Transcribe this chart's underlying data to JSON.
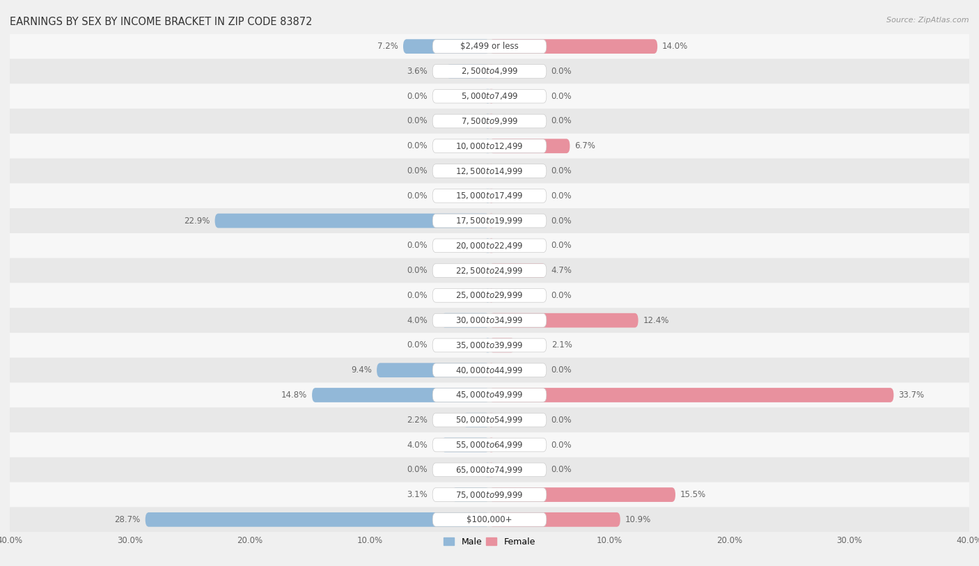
{
  "title": "EARNINGS BY SEX BY INCOME BRACKET IN ZIP CODE 83872",
  "source": "Source: ZipAtlas.com",
  "categories": [
    "$2,499 or less",
    "$2,500 to $4,999",
    "$5,000 to $7,499",
    "$7,500 to $9,999",
    "$10,000 to $12,499",
    "$12,500 to $14,999",
    "$15,000 to $17,499",
    "$17,500 to $19,999",
    "$20,000 to $22,499",
    "$22,500 to $24,999",
    "$25,000 to $29,999",
    "$30,000 to $34,999",
    "$35,000 to $39,999",
    "$40,000 to $44,999",
    "$45,000 to $49,999",
    "$50,000 to $54,999",
    "$55,000 to $64,999",
    "$65,000 to $74,999",
    "$75,000 to $99,999",
    "$100,000+"
  ],
  "male_values": [
    7.2,
    3.6,
    0.0,
    0.0,
    0.0,
    0.0,
    0.0,
    22.9,
    0.0,
    0.0,
    0.0,
    4.0,
    0.0,
    9.4,
    14.8,
    2.2,
    4.0,
    0.0,
    3.1,
    28.7
  ],
  "female_values": [
    14.0,
    0.0,
    0.0,
    0.0,
    6.7,
    0.0,
    0.0,
    0.0,
    0.0,
    4.7,
    0.0,
    12.4,
    2.1,
    0.0,
    33.7,
    0.0,
    0.0,
    0.0,
    15.5,
    10.9
  ],
  "male_color": "#92b8d8",
  "female_color": "#e8919e",
  "bar_height": 0.58,
  "xlim": 40.0,
  "background_color": "#f0f0f0",
  "row_colors": [
    "#f7f7f7",
    "#e8e8e8"
  ],
  "title_fontsize": 10.5,
  "label_fontsize": 8.5,
  "category_fontsize": 8.5,
  "axis_tick_fontsize": 8.5,
  "tick_vals": [
    -40,
    -30,
    -20,
    -10,
    0,
    10,
    20,
    30,
    40
  ],
  "tick_labels": [
    "40.0%",
    "30.0%",
    "20.0%",
    "10.0%",
    "",
    "10.0%",
    "20.0%",
    "30.0%",
    "40.0%"
  ]
}
